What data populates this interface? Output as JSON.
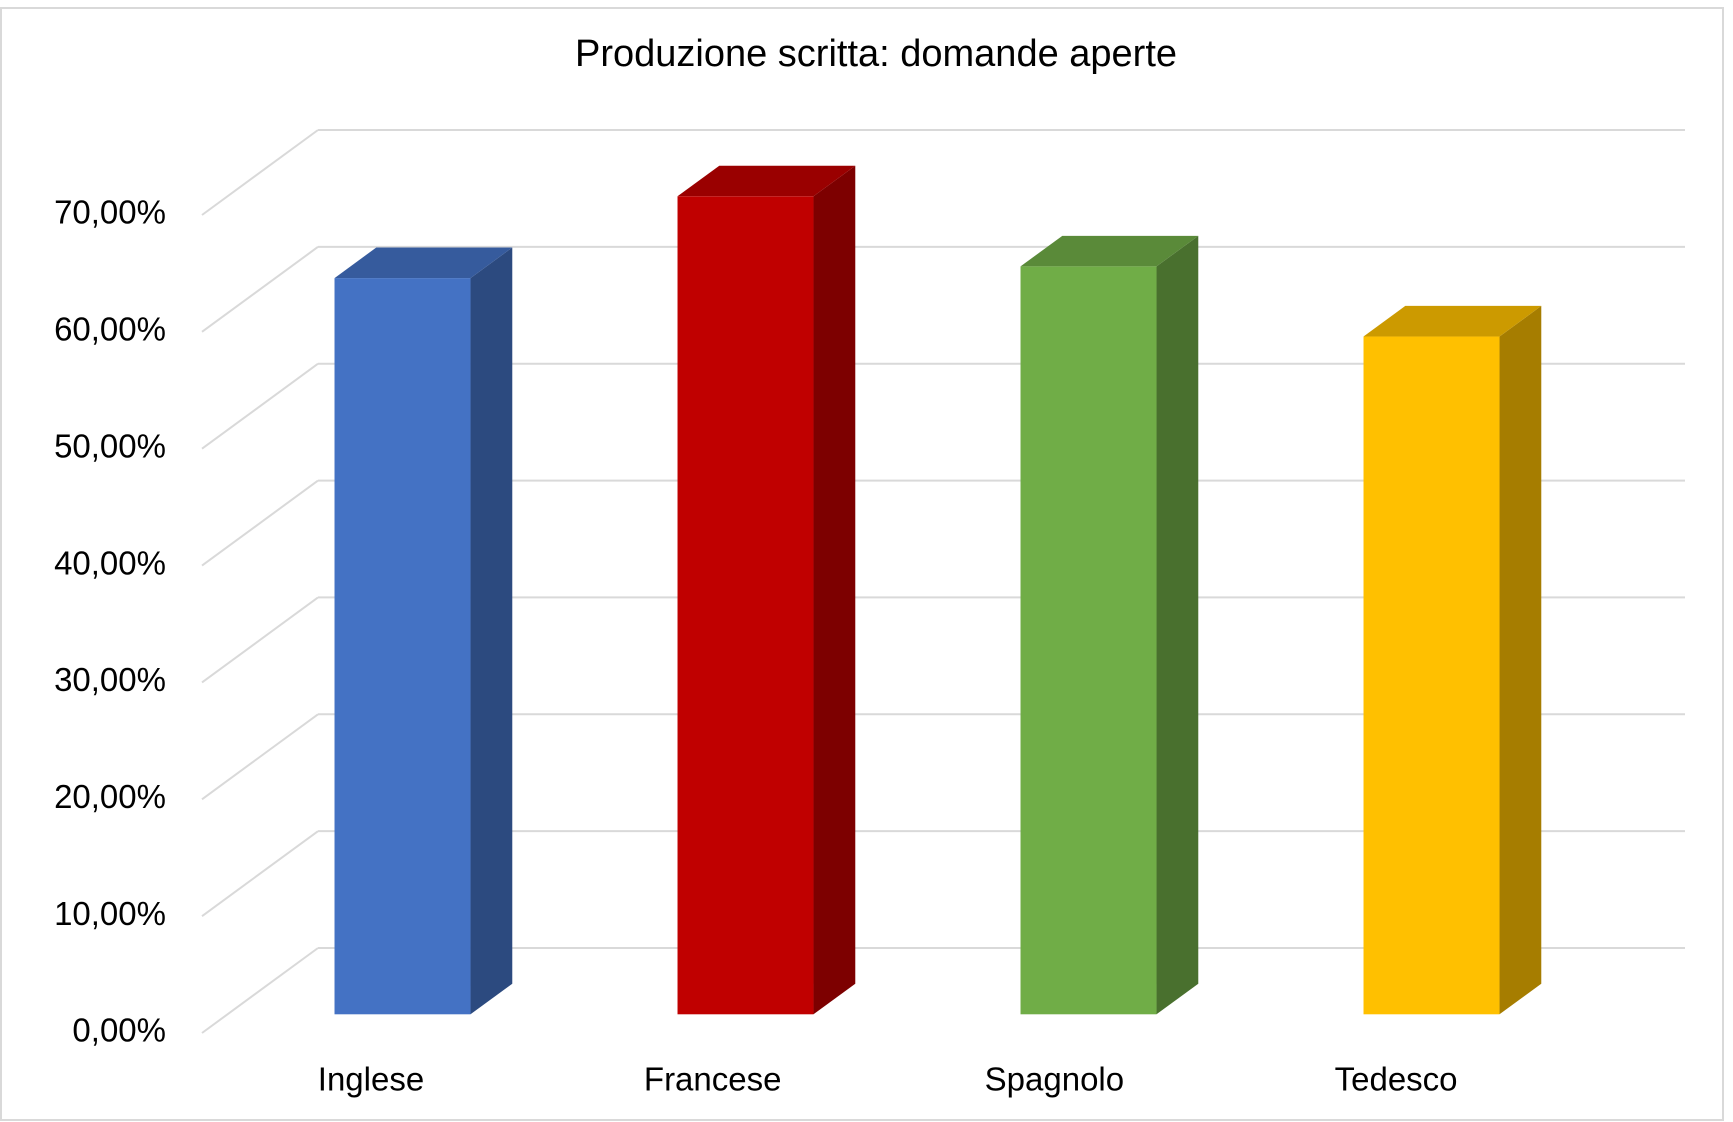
{
  "chart_data": {
    "type": "bar3d",
    "title": "Produzione scritta: domande aperte",
    "categories": [
      "Inglese",
      "Francese",
      "Spagnolo",
      "Tedesco"
    ],
    "values": [
      63,
      70,
      64,
      58
    ],
    "colors": [
      "#4472c4",
      "#c00000",
      "#70ad47",
      "#ffc000"
    ],
    "ylim": [
      0,
      70
    ],
    "yticks": [
      {
        "value": 0,
        "label": "0,00%"
      },
      {
        "value": 10,
        "label": "10,00%"
      },
      {
        "value": 20,
        "label": "20,00%"
      },
      {
        "value": 30,
        "label": "30,00%"
      },
      {
        "value": 40,
        "label": "40,00%"
      },
      {
        "value": 50,
        "label": "50,00%"
      },
      {
        "value": 60,
        "label": "60,00%"
      },
      {
        "value": 70,
        "label": "70,00%"
      }
    ],
    "grid": true
  }
}
